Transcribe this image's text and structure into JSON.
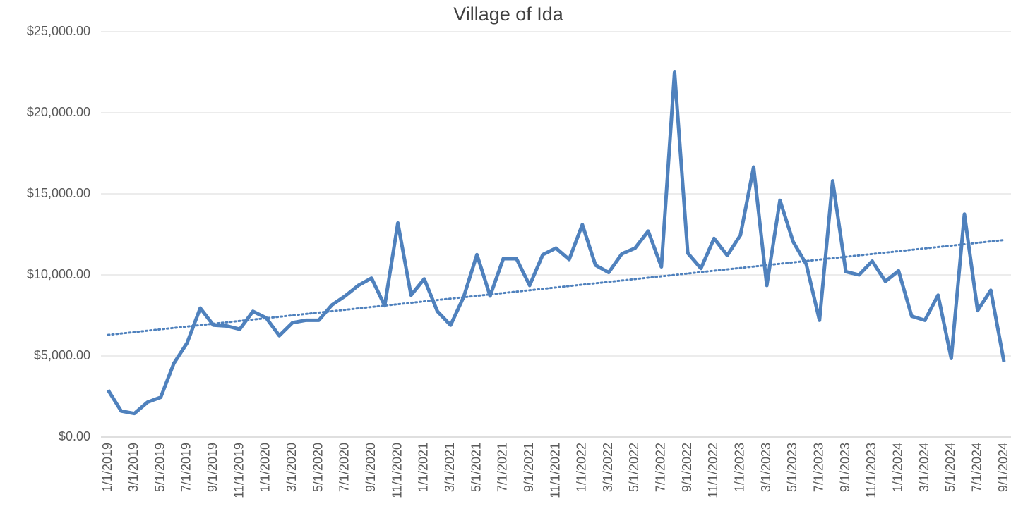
{
  "chart_data": {
    "type": "line",
    "title": "Village of Ida",
    "categories": [
      "1/1/2019",
      null,
      "3/1/2019",
      null,
      "5/1/2019",
      null,
      "7/1/2019",
      null,
      "9/1/2019",
      null,
      "11/1/2019",
      null,
      "1/1/2020",
      null,
      "3/1/2020",
      null,
      "5/1/2020",
      null,
      "7/1/2020",
      null,
      "9/1/2020",
      null,
      "11/1/2020",
      null,
      "1/1/2021",
      null,
      "3/1/2021",
      null,
      "5/1/2021",
      null,
      "7/1/2021",
      null,
      "9/1/2021",
      null,
      "11/1/2021",
      null,
      "1/1/2022",
      null,
      "3/1/2022",
      null,
      "5/1/2022",
      null,
      "7/1/2022",
      null,
      "9/1/2022",
      null,
      "11/1/2022",
      null,
      "1/1/2023",
      null,
      "3/1/2023",
      null,
      "5/1/2023",
      null,
      "7/1/2023",
      null,
      "9/1/2023",
      null,
      "11/1/2023",
      null,
      "1/1/2024",
      null,
      "3/1/2024",
      null,
      "5/1/2024",
      null,
      "7/1/2024",
      null,
      "9/1/2024"
    ],
    "series": [
      {
        "color": "#4f81bd",
        "values": [
          2900,
          1600,
          1450,
          2150,
          2450,
          4550,
          5800,
          7950,
          6900,
          6850,
          6650,
          7750,
          7350,
          6250,
          7050,
          7200,
          7200,
          8150,
          8700,
          9350,
          9800,
          8100,
          13200,
          8750,
          9750,
          7750,
          6900,
          8650,
          11250,
          8700,
          11000,
          11000,
          9350,
          11250,
          11650,
          10950,
          13100,
          10600,
          10150,
          11300,
          11650,
          12700,
          10500,
          22500,
          11350,
          10400,
          12250,
          11200,
          12450,
          16650,
          9350,
          14600,
          12050,
          10650,
          7200,
          15800,
          10200,
          10000,
          10850,
          9600,
          10250,
          7450,
          7200,
          8750,
          4850,
          13750,
          7800,
          9050,
          4650
        ]
      }
    ],
    "trendline": {
      "values": [
        6300,
        12150
      ],
      "color": "#4f81bd"
    },
    "ylim": [
      0,
      25000
    ],
    "yticks": [
      {
        "value": 0,
        "label": "$0.00"
      },
      {
        "value": 5000,
        "label": "$5,000.00"
      },
      {
        "value": 10000,
        "label": "$10,000.00"
      },
      {
        "value": 15000,
        "label": "$15,000.00"
      },
      {
        "value": 20000,
        "label": "$20,000.00"
      },
      {
        "value": 25000,
        "label": "$25,000.00"
      }
    ],
    "grid": true
  }
}
